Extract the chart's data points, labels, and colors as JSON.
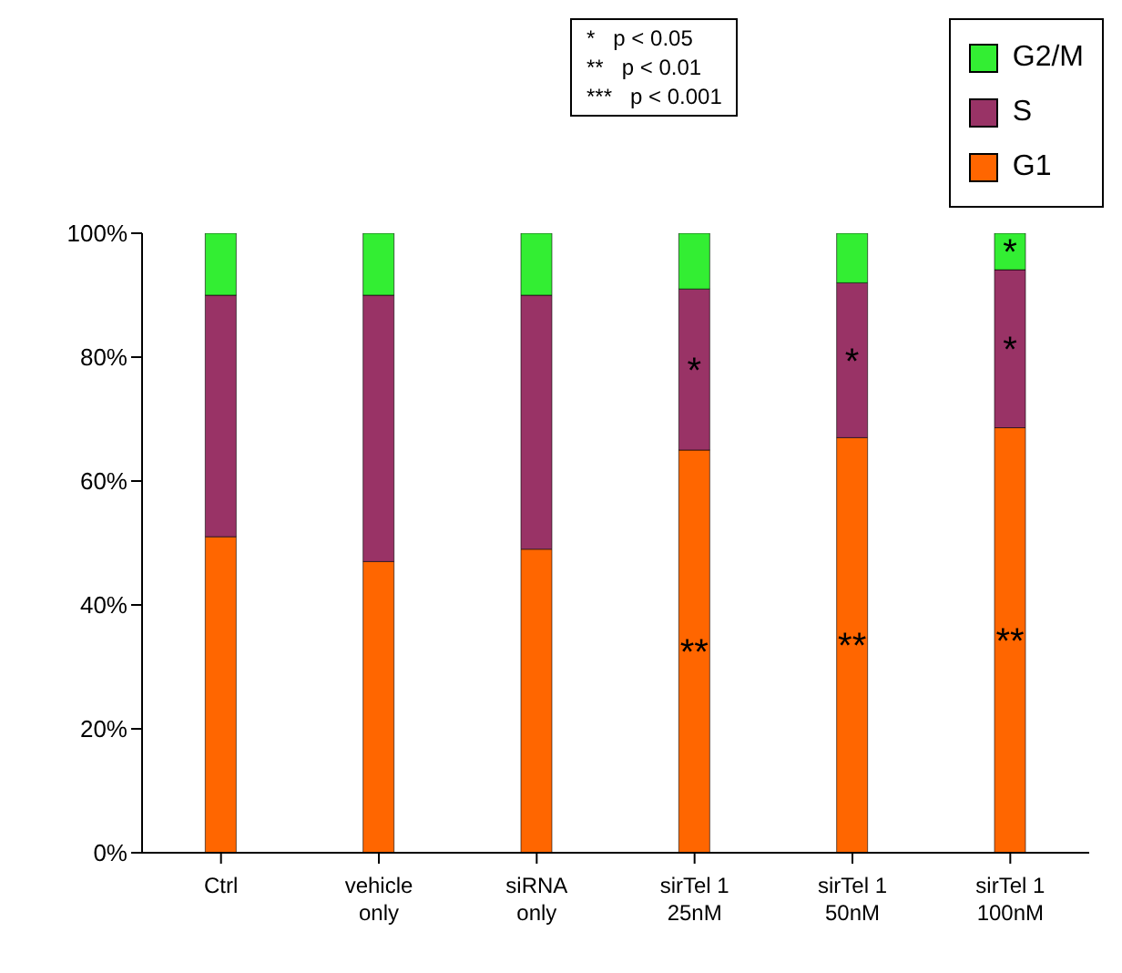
{
  "chart_data": {
    "type": "bar",
    "stacked": true,
    "categories": [
      "Ctrl",
      "vehicle\nonly",
      "siRNA\nonly",
      "sirTel 1\n25nM",
      "sirTel 1\n50nM",
      "sirTel 1\n100nM"
    ],
    "series": [
      {
        "name": "G1",
        "color": "#ff6600",
        "values": [
          51,
          47,
          49,
          65,
          67,
          68.6
        ],
        "value_labels": [
          null,
          null,
          null,
          "**",
          "**",
          "**"
        ]
      },
      {
        "name": "S",
        "color": "#993366",
        "values": [
          39,
          43,
          41,
          26,
          25,
          25.5
        ],
        "value_labels": [
          null,
          null,
          null,
          "*",
          "*",
          "*"
        ]
      },
      {
        "name": "G2/M",
        "color": "#33ee33",
        "values": [
          10,
          10,
          10,
          9,
          8,
          5.9
        ],
        "value_labels": [
          null,
          null,
          null,
          null,
          null,
          "*"
        ]
      }
    ],
    "ylim": [
      0,
      100
    ],
    "yticks": [
      {
        "value": 0,
        "label": "0%"
      },
      {
        "value": 20,
        "label": "20%"
      },
      {
        "value": 40,
        "label": "40%"
      },
      {
        "value": 60,
        "label": "60%"
      },
      {
        "value": 80,
        "label": "80%"
      },
      {
        "value": 100,
        "label": "100%"
      }
    ],
    "grid": false,
    "legend": "top right",
    "annotations": [
      "*   p < 0.05",
      "**   p < 0.01",
      "***   p < 0.001"
    ]
  }
}
